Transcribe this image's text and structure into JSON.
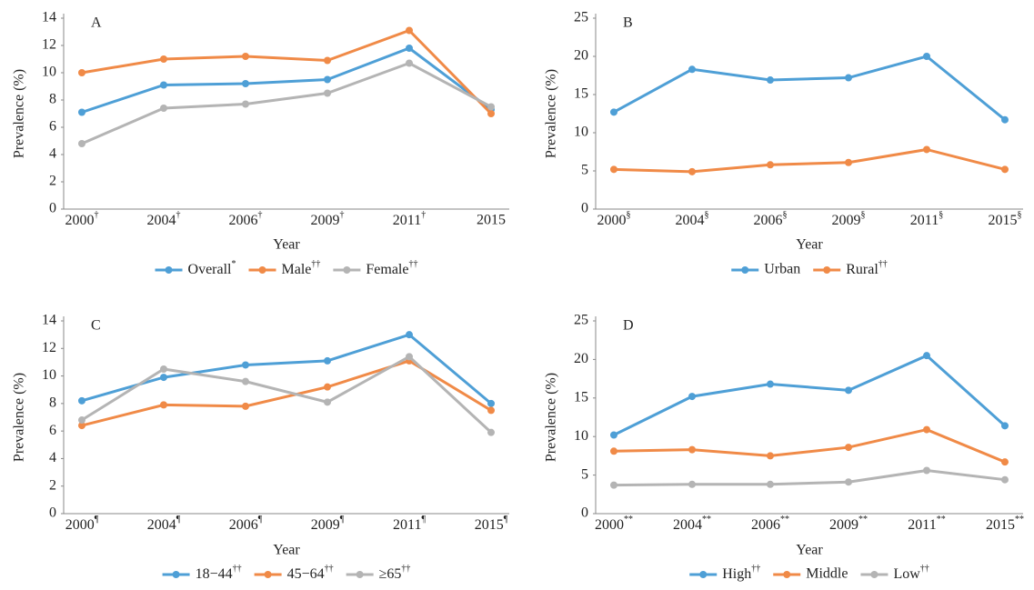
{
  "chart_data": [
    {
      "type": "line",
      "title": "A",
      "ylabel": "Prevalence (%)",
      "xlabel": "Year",
      "categories": [
        "2000†",
        "2004†",
        "2006†",
        "2009†",
        "2011†",
        "2015"
      ],
      "ylim": [
        0,
        14
      ],
      "yticks": [
        0,
        2,
        4,
        6,
        8,
        10,
        12,
        14
      ],
      "series": [
        {
          "name": "Overall*",
          "color": "#4e9fd6",
          "values": [
            7.1,
            9.1,
            9.2,
            9.5,
            11.8,
            7.3
          ]
        },
        {
          "name": "Male††",
          "color": "#f08a47",
          "values": [
            10.0,
            11.0,
            11.2,
            10.9,
            13.1,
            7.0
          ]
        },
        {
          "name": "Female††",
          "color": "#b4b4b4",
          "values": [
            4.8,
            7.4,
            7.7,
            8.5,
            10.7,
            7.5
          ]
        }
      ]
    },
    {
      "type": "line",
      "title": "B",
      "ylabel": "Prevalence (%)",
      "xlabel": "Year",
      "categories": [
        "2000§",
        "2004§",
        "2006§",
        "2009§",
        "2011§",
        "2015§"
      ],
      "ylim": [
        0,
        25
      ],
      "yticks": [
        0,
        5,
        10,
        15,
        20,
        25
      ],
      "series": [
        {
          "name": "Urban",
          "color": "#4e9fd6",
          "values": [
            12.7,
            18.3,
            16.9,
            17.2,
            20.0,
            11.7
          ]
        },
        {
          "name": "Rural††",
          "color": "#f08a47",
          "values": [
            5.2,
            4.9,
            5.8,
            6.1,
            7.8,
            5.2
          ]
        }
      ]
    },
    {
      "type": "line",
      "title": "C",
      "ylabel": "Prevalence (%)",
      "xlabel": "Year",
      "categories": [
        "2000¶",
        "2004¶",
        "2006¶",
        "2009¶",
        "2011¶",
        "2015¶"
      ],
      "ylim": [
        0,
        14
      ],
      "yticks": [
        0,
        2,
        4,
        6,
        8,
        10,
        12,
        14
      ],
      "series": [
        {
          "name": "18−44††",
          "color": "#4e9fd6",
          "values": [
            8.2,
            9.9,
            10.8,
            11.1,
            13.0,
            8.0
          ]
        },
        {
          "name": "45−64††",
          "color": "#f08a47",
          "values": [
            6.4,
            7.9,
            7.8,
            9.2,
            11.1,
            7.5
          ]
        },
        {
          "name": "≥65††",
          "color": "#b4b4b4",
          "values": [
            6.8,
            10.5,
            9.6,
            8.1,
            11.4,
            5.9
          ]
        }
      ]
    },
    {
      "type": "line",
      "title": "D",
      "ylabel": "Prevalence (%)",
      "xlabel": "Year",
      "categories": [
        "2000**",
        "2004**",
        "2006**",
        "2009**",
        "2011**",
        "2015**"
      ],
      "ylim": [
        0,
        25
      ],
      "yticks": [
        0,
        5,
        10,
        15,
        20,
        25
      ],
      "series": [
        {
          "name": "High††",
          "color": "#4e9fd6",
          "values": [
            10.2,
            15.2,
            16.8,
            16.0,
            20.5,
            11.4
          ]
        },
        {
          "name": "Middle",
          "color": "#f08a47",
          "values": [
            8.1,
            8.3,
            7.5,
            8.6,
            10.9,
            6.7
          ]
        },
        {
          "name": "Low††",
          "color": "#b4b4b4",
          "values": [
            3.7,
            3.8,
            3.8,
            4.1,
            5.6,
            4.4
          ]
        }
      ]
    }
  ]
}
